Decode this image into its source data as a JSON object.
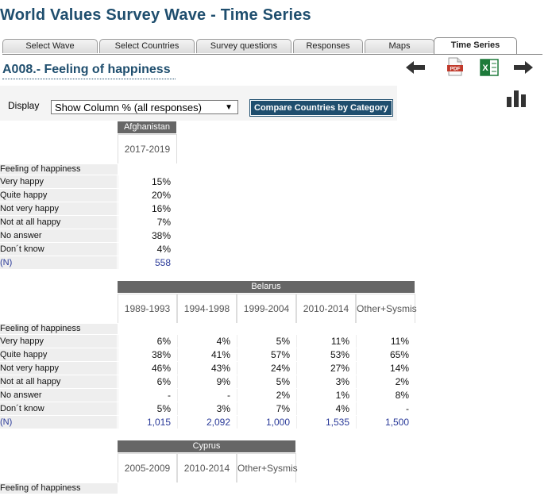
{
  "app_title": "World Values Survey Wave - Time Series",
  "tabs": [
    "Select Wave",
    "Select Countries",
    "Survey questions",
    "Responses",
    "Maps",
    "Time Series"
  ],
  "active_tab": "Time Series",
  "question_title": "A008.- Feeling of happiness",
  "display": {
    "label": "Display",
    "selected": "Show Column % (all responses)",
    "compare_button": "Compare Countries by Category"
  },
  "icons": {
    "back": "arrow-left-icon",
    "pdf": "pdf-icon",
    "excel": "excel-icon",
    "forward": "arrow-right-icon",
    "chart": "bar-chart-icon"
  },
  "pdf_label": "PDF",
  "excel_label": "X",
  "row_header": "Feeling of happiness",
  "row_labels": [
    "Very happy",
    "Quite happy",
    "Not very happy",
    "Not at all happy",
    "No answer",
    "Don´t know",
    "(N)"
  ],
  "countries": [
    {
      "name": "Afghanistan",
      "periods": [
        "2017-2019"
      ],
      "values": [
        [
          "15%"
        ],
        [
          "20%"
        ],
        [
          "16%"
        ],
        [
          "7%"
        ],
        [
          "38%"
        ],
        [
          "4%"
        ],
        [
          "558"
        ]
      ]
    },
    {
      "name": "Belarus",
      "periods": [
        "1989-1993",
        "1994-1998",
        "1999-2004",
        "2010-2014",
        "Other+Sysmis"
      ],
      "values": [
        [
          "6%",
          "4%",
          "5%",
          "11%",
          "11%"
        ],
        [
          "38%",
          "41%",
          "57%",
          "53%",
          "65%"
        ],
        [
          "46%",
          "43%",
          "24%",
          "27%",
          "14%"
        ],
        [
          "6%",
          "9%",
          "5%",
          "3%",
          "2%"
        ],
        [
          "-",
          "-",
          "2%",
          "1%",
          "8%"
        ],
        [
          "5%",
          "3%",
          "7%",
          "4%",
          "-"
        ],
        [
          "1,015",
          "2,092",
          "1,000",
          "1,535",
          "1,500"
        ]
      ]
    },
    {
      "name": "Cyprus",
      "periods": [
        "2005-2009",
        "2010-2014",
        "Other+Sysmis"
      ],
      "values": []
    }
  ]
}
